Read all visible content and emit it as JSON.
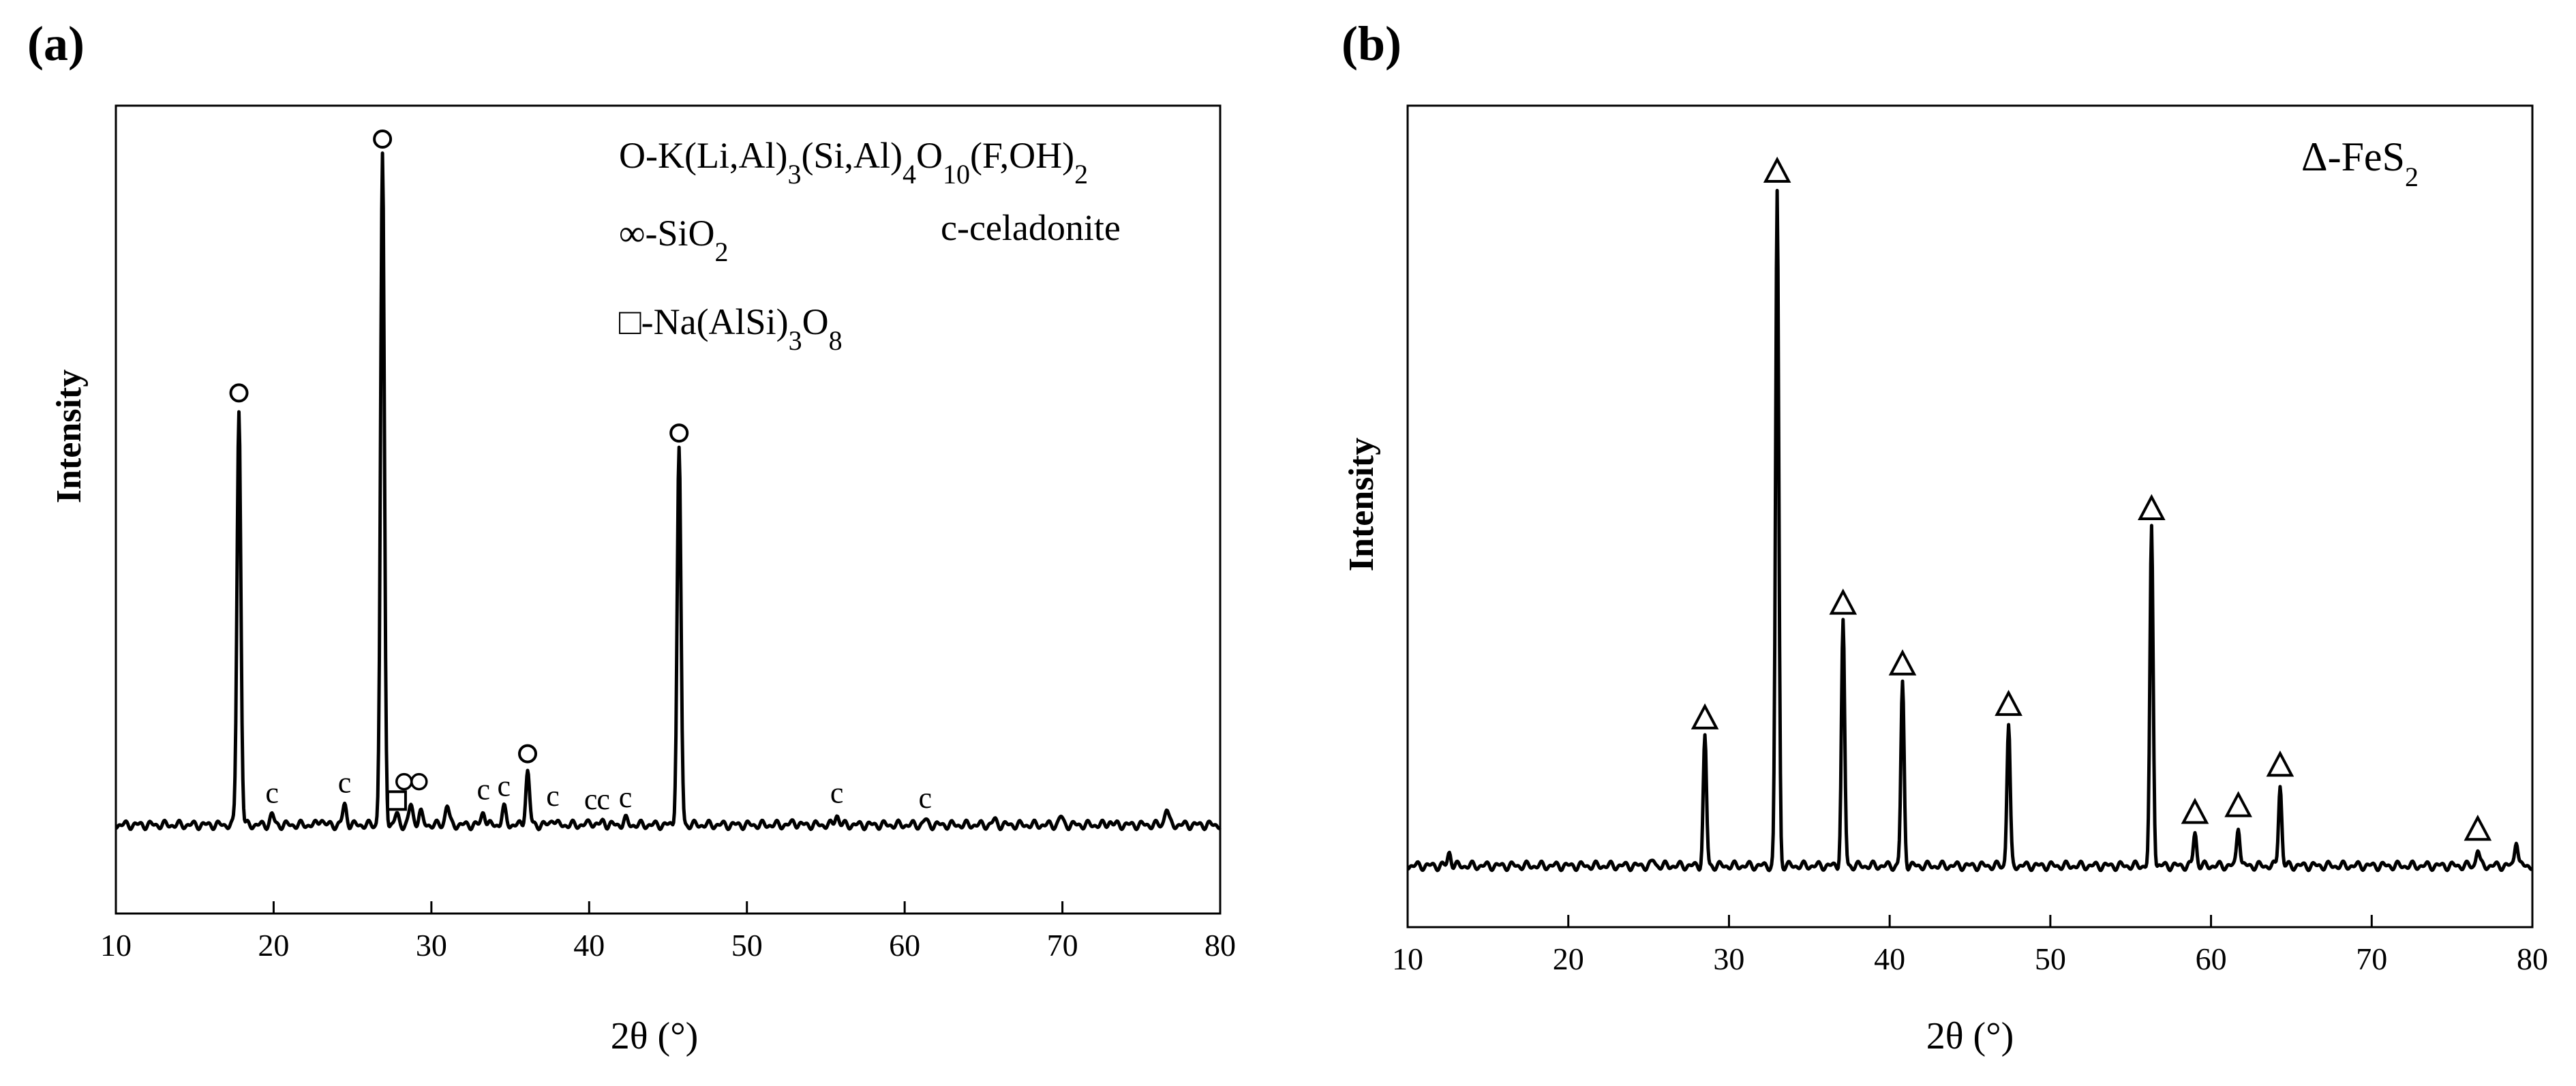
{
  "panels": [
    {
      "label": "(a)",
      "chart_data": {
        "type": "line",
        "xlabel": "2θ (°)",
        "ylabel": "Intensity",
        "xlim": [
          10,
          80
        ],
        "xticks": [
          10,
          20,
          30,
          40,
          50,
          60,
          70,
          80
        ],
        "y_tick_labels": false,
        "grid": false,
        "legend": {
          "placement": "top-right",
          "entries": [
            {
              "symbol": "circle",
              "text": "O-K(Li,Al)3(Si,Al)4O10(F,OH)2",
              "html": "O-K(Li,Al)<tspan dy='14' font-size='44'>3</tspan><tspan dy='-14'>(Si,Al)</tspan><tspan dy='14' font-size='44'>4</tspan><tspan dy='-14'>O</tspan><tspan dy='14' font-size='44'>10</tspan><tspan dy='-14'>(F,OH)</tspan><tspan dy='14' font-size='44'>2</tspan>"
            },
            {
              "symbol": "double-circle",
              "text": "∞-SiO2"
            },
            {
              "symbol": "square",
              "text": "□-Na(AlSi)3O8"
            },
            {
              "symbol": "letter-c",
              "text": "c-celadonite"
            }
          ]
        },
        "peaks": [
          {
            "x": 17.8,
            "y": 0.62,
            "marker": "o"
          },
          {
            "x": 19.9,
            "y": 0.015,
            "marker": "c"
          },
          {
            "x": 23.0,
            "y": 0.01,
            "marker": ""
          },
          {
            "x": 24.5,
            "y": 0.03,
            "marker": "c"
          },
          {
            "x": 26.9,
            "y": 1.0,
            "marker": "o"
          },
          {
            "x": 27.8,
            "y": 0.015,
            "marker": "□"
          },
          {
            "x": 28.7,
            "y": 0.03,
            "marker": "∞"
          },
          {
            "x": 29.3,
            "y": 0.02,
            "marker": ""
          },
          {
            "x": 31.0,
            "y": 0.03,
            "marker": ""
          },
          {
            "x": 33.3,
            "y": 0.02,
            "marker": "c"
          },
          {
            "x": 34.6,
            "y": 0.025,
            "marker": "c"
          },
          {
            "x": 36.1,
            "y": 0.08,
            "marker": "o"
          },
          {
            "x": 37.7,
            "y": 0.01,
            "marker": "c"
          },
          {
            "x": 40.1,
            "y": 0.005,
            "marker": "c"
          },
          {
            "x": 40.9,
            "y": 0.005,
            "marker": "c"
          },
          {
            "x": 42.3,
            "y": 0.008,
            "marker": "c"
          },
          {
            "x": 45.7,
            "y": 0.56,
            "marker": "o"
          },
          {
            "x": 53.0,
            "y": 0.005,
            "marker": ""
          },
          {
            "x": 55.7,
            "y": 0.015,
            "marker": "c"
          },
          {
            "x": 61.3,
            "y": 0.007,
            "marker": "c"
          },
          {
            "x": 65.7,
            "y": 0.007,
            "marker": ""
          },
          {
            "x": 69.9,
            "y": 0.012,
            "marker": ""
          },
          {
            "x": 73.0,
            "y": 0.005,
            "marker": ""
          },
          {
            "x": 76.6,
            "y": 0.025,
            "marker": ""
          }
        ]
      }
    },
    {
      "label": "(b)",
      "chart_data": {
        "type": "line",
        "xlabel": "2θ (°)",
        "ylabel": "Intensity",
        "xlim": [
          10,
          80
        ],
        "xticks": [
          10,
          20,
          30,
          40,
          50,
          60,
          70,
          80
        ],
        "y_tick_labels": false,
        "grid": false,
        "legend": {
          "placement": "top-right",
          "entries": [
            {
              "symbol": "triangle",
              "text": "Δ-FeS2"
            }
          ]
        },
        "peaks": [
          {
            "x": 12.6,
            "y": 0.02,
            "marker": ""
          },
          {
            "x": 25.3,
            "y": 0.008,
            "marker": ""
          },
          {
            "x": 28.5,
            "y": 0.19,
            "marker": "Δ"
          },
          {
            "x": 33.0,
            "y": 1.0,
            "marker": "Δ"
          },
          {
            "x": 37.1,
            "y": 0.36,
            "marker": "Δ"
          },
          {
            "x": 40.8,
            "y": 0.27,
            "marker": "Δ"
          },
          {
            "x": 47.4,
            "y": 0.21,
            "marker": "Δ"
          },
          {
            "x": 56.3,
            "y": 0.5,
            "marker": "Δ"
          },
          {
            "x": 59.0,
            "y": 0.05,
            "marker": "Δ"
          },
          {
            "x": 61.7,
            "y": 0.06,
            "marker": "Δ"
          },
          {
            "x": 64.3,
            "y": 0.12,
            "marker": "Δ"
          },
          {
            "x": 76.6,
            "y": 0.025,
            "marker": "Δ"
          },
          {
            "x": 79.0,
            "y": 0.04,
            "marker": ""
          }
        ]
      }
    }
  ]
}
